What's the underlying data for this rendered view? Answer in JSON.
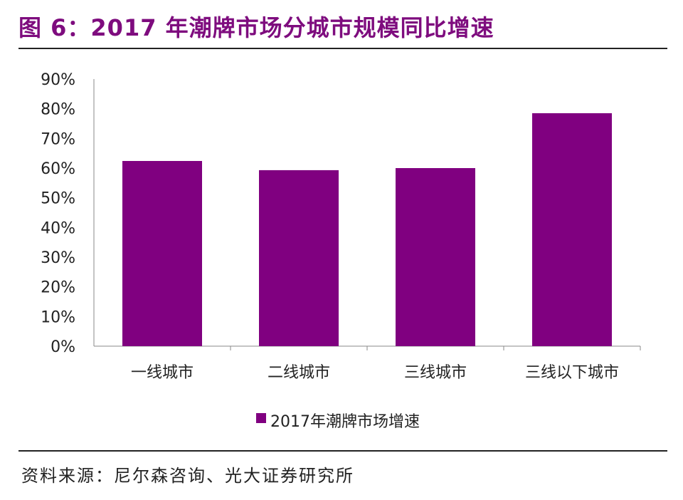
{
  "title": "图 6：2017 年潮牌市场分城市规模同比增速",
  "source": "资料来源：尼尔森咨询、光大证券研究所",
  "chart_data": {
    "type": "bar",
    "categories": [
      "一线城市",
      "二线城市",
      "三线城市",
      "三线以下城市"
    ],
    "series": [
      {
        "name": "2017年潮牌市场增速",
        "values": [
          62.4,
          59.3,
          60.0,
          78.5
        ],
        "color": "#800080"
      }
    ],
    "yticks": [
      "0%",
      "10%",
      "20%",
      "30%",
      "40%",
      "50%",
      "60%",
      "70%",
      "80%",
      "90%"
    ],
    "ylim": [
      0,
      90
    ],
    "grid": false,
    "legend": "bottom"
  }
}
